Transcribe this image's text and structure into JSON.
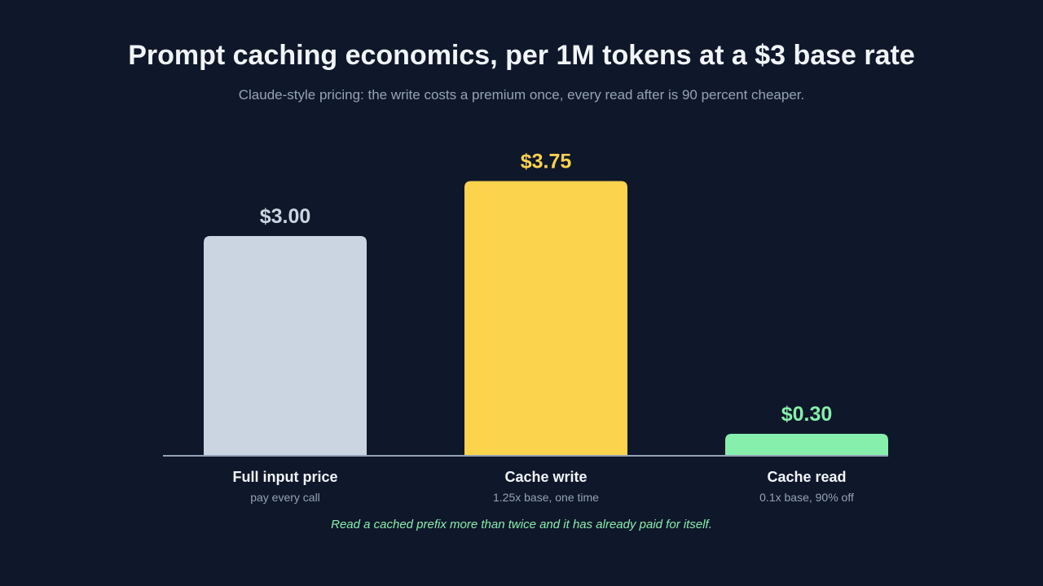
{
  "header": {
    "title": "Prompt caching economics, per 1M tokens at a $3 base rate",
    "subtitle": "Claude-style pricing: the write costs a premium once, every read after is 90 percent cheaper."
  },
  "footnote": "Read a cached prefix more than twice and it has already paid for itself.",
  "chart_data": {
    "type": "bar",
    "title": "Prompt caching economics, per 1M tokens at a $3 base rate",
    "subtitle": "Claude-style pricing: the write costs a premium once, every read after is 90 percent cheaper.",
    "categories": [
      "Full input price",
      "Cache write",
      "Cache read"
    ],
    "category_notes": [
      "pay every call",
      "1.25x base, one time",
      "0.1x base, 90% off"
    ],
    "values": [
      3.0,
      3.75,
      0.3
    ],
    "value_labels": [
      "$3.00",
      "$3.75",
      "$0.30"
    ],
    "colors": [
      "#cbd5e1",
      "#fcd34d",
      "#86efac"
    ],
    "label_colors": [
      "#cbd5e1",
      "#fcd34d",
      "#86efac"
    ],
    "axis_color": "#94a3b8",
    "grid": false,
    "legend": "none",
    "xlabel": "",
    "ylabel": ""
  }
}
